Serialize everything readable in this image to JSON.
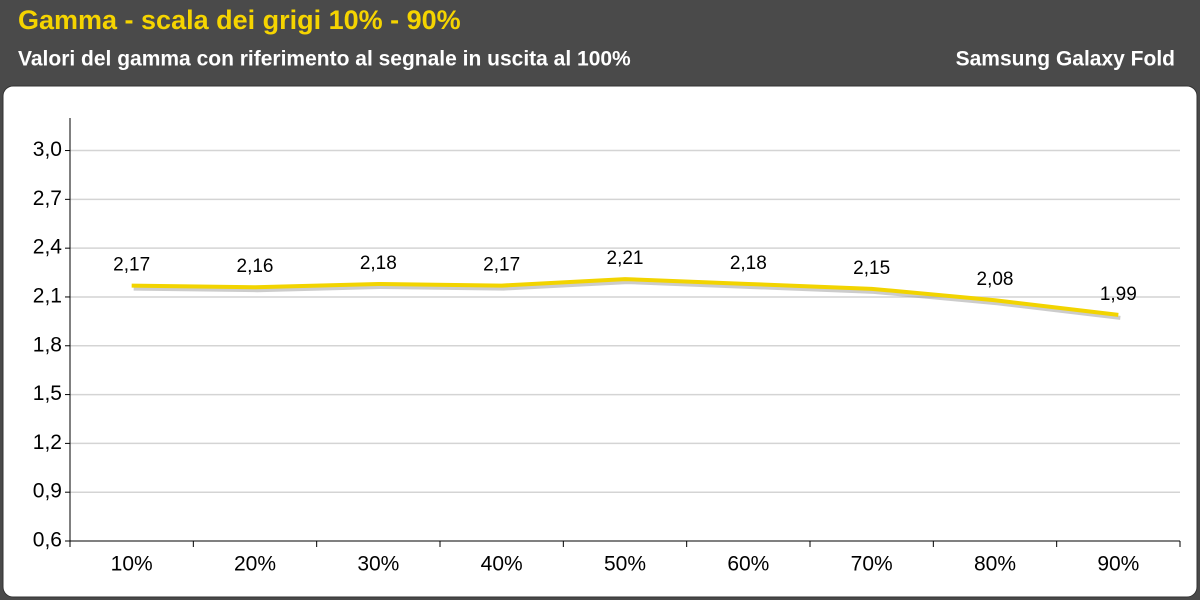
{
  "chart_data": {
    "type": "line",
    "title": "Gamma - scala dei grigi 10% - 90%",
    "subtitle": "Valori del gamma con riferimento al segnale in uscita al 100%",
    "device": "Samsung Galaxy Fold",
    "categories": [
      "10%",
      "20%",
      "30%",
      "40%",
      "50%",
      "60%",
      "70%",
      "80%",
      "90%"
    ],
    "values": [
      2.17,
      2.16,
      2.18,
      2.17,
      2.21,
      2.18,
      2.15,
      2.08,
      1.99
    ],
    "value_labels": [
      "2,17",
      "2,16",
      "2,18",
      "2,17",
      "2,21",
      "2,18",
      "2,15",
      "2,08",
      "1,99"
    ],
    "color": "#f2d400",
    "ylim": [
      0.6,
      3.2
    ],
    "yticks": [
      {
        "value": 0.6,
        "label": "0,6"
      },
      {
        "value": 0.9,
        "label": "0,9"
      },
      {
        "value": 1.2,
        "label": "1,2"
      },
      {
        "value": 1.5,
        "label": "1,5"
      },
      {
        "value": 1.8,
        "label": "1,8"
      },
      {
        "value": 2.1,
        "label": "2,1"
      },
      {
        "value": 2.4,
        "label": "2,4"
      },
      {
        "value": 2.7,
        "label": "2,7"
      },
      {
        "value": 3.0,
        "label": "3,0"
      }
    ],
    "grid": true
  }
}
